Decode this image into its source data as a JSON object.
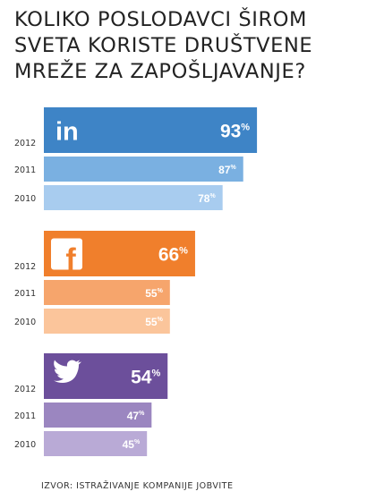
{
  "title_lines": [
    "KOLIKO POSLODAVCI ŠIROM",
    "SVETA KORISTE DRUŠTVENE",
    "MREŽE ZA ZAPOŠLJAVANJE?"
  ],
  "source": "IZVOR: ISTRAŽIVANJE KOMPANIJE JOBVITE",
  "chart_data": {
    "type": "bar",
    "orientation": "horizontal",
    "value_suffix": "%",
    "xlim": [
      0,
      100
    ],
    "groups": [
      {
        "name": "linkedin",
        "icon": "linkedin-icon",
        "icon_text": "in",
        "colors": [
          "#3e84c6",
          "#7ab0e1",
          "#a8ccef"
        ],
        "bars": [
          {
            "year": "2012",
            "value": 93
          },
          {
            "year": "2011",
            "value": 87
          },
          {
            "year": "2010",
            "value": 78
          }
        ]
      },
      {
        "name": "facebook",
        "icon": "facebook-icon",
        "icon_text": "f",
        "colors": [
          "#f07f2c",
          "#f6a56c",
          "#fbc59b"
        ],
        "bars": [
          {
            "year": "2012",
            "value": 66
          },
          {
            "year": "2011",
            "value": 55
          },
          {
            "year": "2010",
            "value": 55
          }
        ]
      },
      {
        "name": "twitter",
        "icon": "twitter-icon",
        "icon_text": "",
        "colors": [
          "#6c4f9b",
          "#9b86c0",
          "#b9aad6"
        ],
        "bars": [
          {
            "year": "2012",
            "value": 54
          },
          {
            "year": "2011",
            "value": 47
          },
          {
            "year": "2010",
            "value": 45
          }
        ]
      }
    ]
  }
}
